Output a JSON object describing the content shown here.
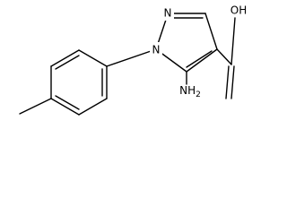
{
  "labels": {
    "n1": "N",
    "n2": "N",
    "amine": {
      "text": "NH",
      "subscript": "2"
    },
    "acid": "OH"
  }
}
